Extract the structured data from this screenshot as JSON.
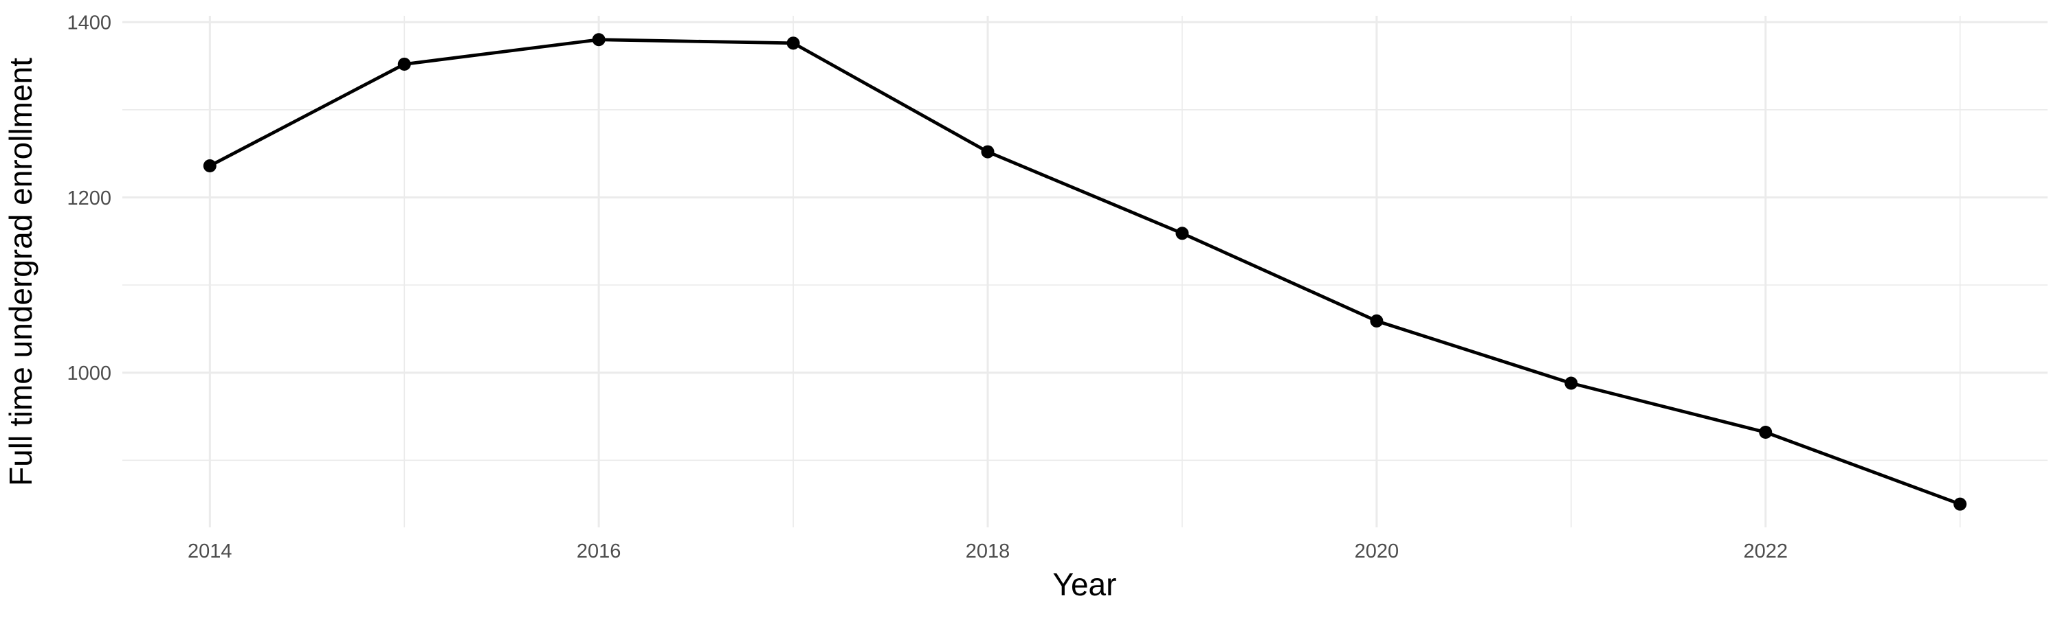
{
  "chart_data": {
    "type": "line",
    "title": "",
    "xlabel": "Year",
    "ylabel": "Full time undergrad enrollment",
    "x": [
      2014,
      2015,
      2016,
      2017,
      2018,
      2019,
      2020,
      2021,
      2022,
      2023
    ],
    "series": [
      {
        "name": "Full time undergrad enrollment",
        "values": [
          1236,
          1352,
          1380,
          1376,
          1252,
          1159,
          1059,
          988,
          932,
          850
        ]
      }
    ],
    "x_major_ticks": [
      2014,
      2016,
      2018,
      2020,
      2022
    ],
    "x_minor_gridlines": [
      2015,
      2017,
      2019,
      2021,
      2023
    ],
    "y_major_ticks": [
      1400,
      1200,
      1000
    ],
    "y_minor_gridlines": [
      1300,
      1100,
      900
    ],
    "xlim": [
      2013.55,
      2023.45
    ],
    "ylim": [
      823.5,
      1407.2
    ],
    "grid": "on",
    "legend": "none",
    "colors": {
      "background": "#FFFFFF",
      "gridline": "#EBEBEB",
      "line": "#000000",
      "point": "#000000",
      "tick_text": "#4D4D4D",
      "axis_title_text": "#000000"
    }
  }
}
